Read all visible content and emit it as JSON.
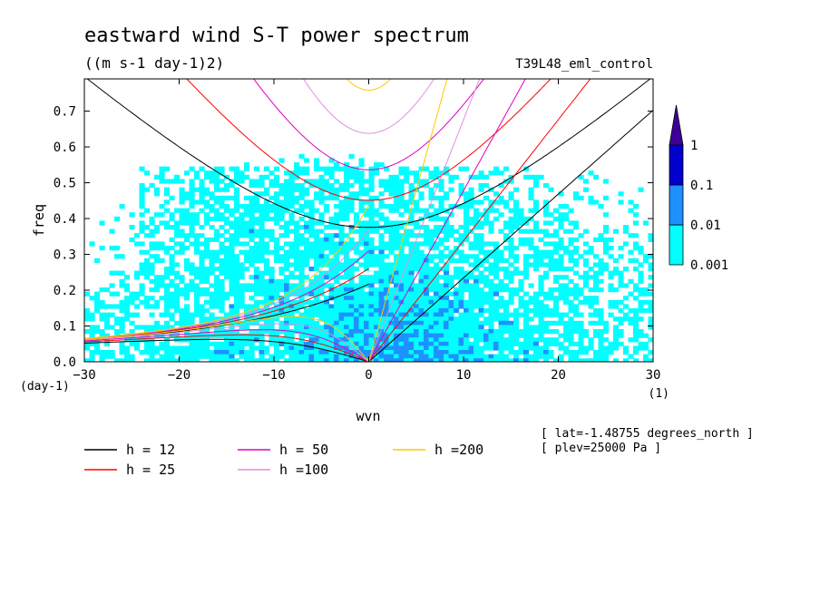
{
  "chart_data": {
    "type": "heatmap",
    "title": "eastward wind S-T power spectrum",
    "subtitle": "((m s-1 day-1)2)",
    "run_name": "T39L48_eml_control",
    "xlabel": "wvn",
    "ylabel": "freq",
    "x_unit": "(1)",
    "y_unit": "(day-1)",
    "xlim": [
      -30,
      30
    ],
    "ylim": [
      0,
      0.79
    ],
    "xticks": [
      -30,
      -20,
      -10,
      0,
      10,
      20,
      30
    ],
    "yticks": [
      0.0,
      0.1,
      0.2,
      0.3,
      0.4,
      0.5,
      0.6,
      0.7
    ],
    "colorbar": {
      "levels": [
        0.001,
        0.01,
        0.1,
        1
      ],
      "level_labels": [
        "0.001",
        "0.01",
        "0.1",
        "1"
      ],
      "colors": [
        "#00ffff",
        "#1e90ff",
        "#0000cd",
        "#3d0099"
      ]
    },
    "dispersion_curves": [
      {
        "label": "h = 12",
        "h": 12,
        "color": "#000000"
      },
      {
        "label": "h = 25",
        "h": 25,
        "color": "#ff0000"
      },
      {
        "label": "h = 50",
        "h": 50,
        "color": "#e000c0"
      },
      {
        "label": "h =100",
        "h": 100,
        "color": "#dd90dd"
      },
      {
        "label": "h =200",
        "h": 200,
        "color": "#ffc800"
      }
    ],
    "annotations": [
      "[ lat=-1.48755 degrees_north ]",
      "[ plev=25000 Pa ]"
    ]
  }
}
